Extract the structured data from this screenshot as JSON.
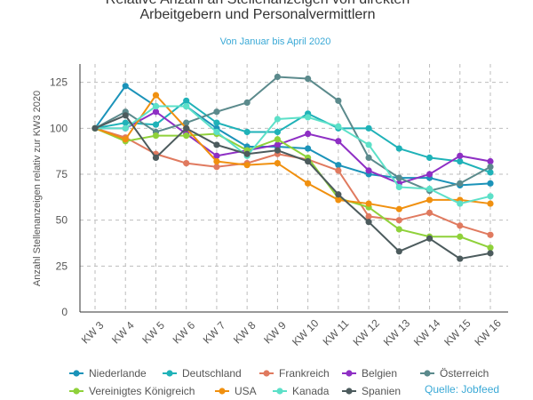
{
  "chart_data": {
    "type": "line",
    "title_lines": [
      "Relative Anzahl an Stellenanzeigen von direkten",
      "Arbeitgebern und Personalvermittlern"
    ],
    "subtitle": "Von Januar bis April 2020",
    "ylabel": "Anzahl Stellenanzeigen relativ zur KW3 2020",
    "xlabel": "",
    "categories": [
      "KW 3",
      "KW 4",
      "KW 5",
      "KW 6",
      "KW 7",
      "KW 8",
      "KW 9",
      "KW 10",
      "KW 11",
      "KW 12",
      "KW 13",
      "KW 14",
      "KW 15",
      "KW 16"
    ],
    "ylim": [
      0,
      135
    ],
    "yticks": [
      0,
      25,
      50,
      75,
      100,
      125
    ],
    "grid": true,
    "legend_position": "bottom",
    "source": "Quelle: Jobfeed",
    "series": [
      {
        "name": "Niederlande",
        "color": "#1b93b9",
        "values": [
          100,
          123,
          112,
          112,
          100,
          90,
          90,
          89,
          80,
          75,
          73,
          73,
          69,
          70
        ]
      },
      {
        "name": "Deutschland",
        "color": "#1fb2b8",
        "values": [
          100,
          103,
          102,
          115,
          103,
          98,
          98,
          108,
          100,
          100,
          89,
          84,
          82,
          76
        ]
      },
      {
        "name": "Frankreich",
        "color": "#e07a5f",
        "values": [
          100,
          95,
          86,
          81,
          79,
          81,
          86,
          83,
          77,
          52,
          50,
          54,
          47,
          42
        ]
      },
      {
        "name": "Belgien",
        "color": "#8e2fc4",
        "values": [
          100,
          100,
          109,
          97,
          85,
          88,
          91,
          97,
          93,
          77,
          70,
          75,
          85,
          82
        ]
      },
      {
        "name": "Österreich",
        "color": "#5b8a8c",
        "values": [
          100,
          109,
          98,
          103,
          109,
          114,
          128,
          127,
          115,
          84,
          73,
          66,
          70,
          79
        ]
      },
      {
        "name": "Vereinigtes Königreich",
        "color": "#8fd13a",
        "values": [
          100,
          93,
          96,
          96,
          97,
          88,
          94,
          84,
          62,
          57,
          45,
          41,
          41,
          35
        ]
      },
      {
        "name": "USA",
        "color": "#f0900f",
        "values": [
          100,
          94,
          118,
          100,
          82,
          80,
          81,
          70,
          61,
          59,
          56,
          61,
          61,
          59
        ]
      },
      {
        "name": "Kanada",
        "color": "#5ce0c8",
        "values": [
          100,
          100,
          112,
          112,
          98,
          85,
          105,
          106,
          101,
          91,
          68,
          67,
          59,
          63
        ]
      },
      {
        "name": "Spanien",
        "color": "#4c5b5d",
        "values": [
          100,
          107,
          84,
          100,
          91,
          86,
          88,
          82,
          64,
          49,
          33,
          40,
          29,
          32
        ]
      }
    ]
  }
}
